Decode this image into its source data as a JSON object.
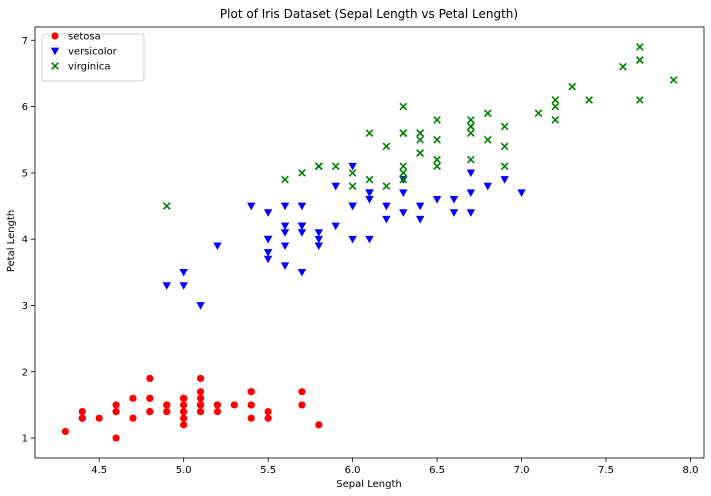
{
  "chart_data": {
    "type": "scatter",
    "title": "Plot of Iris Dataset (Sepal Length vs Petal Length)",
    "xlabel": "Sepal Length",
    "ylabel": "Petal Length",
    "xlim": [
      4.12,
      8.08
    ],
    "ylim": [
      0.7,
      7.2
    ],
    "xticks": [
      "4.5",
      "5.0",
      "5.5",
      "6.0",
      "6.5",
      "7.0",
      "7.5",
      "8.0"
    ],
    "yticks": [
      "1",
      "2",
      "3",
      "4",
      "5",
      "6",
      "7"
    ],
    "grid": false,
    "legend_position": "top-left",
    "series": [
      {
        "name": "setosa",
        "marker": "circle",
        "color": "#ff0000",
        "points": [
          [
            5.1,
            1.4
          ],
          [
            4.9,
            1.4
          ],
          [
            4.7,
            1.3
          ],
          [
            4.6,
            1.5
          ],
          [
            5.0,
            1.4
          ],
          [
            5.4,
            1.7
          ],
          [
            4.6,
            1.4
          ],
          [
            5.0,
            1.5
          ],
          [
            4.4,
            1.4
          ],
          [
            4.9,
            1.5
          ],
          [
            5.4,
            1.5
          ],
          [
            4.8,
            1.6
          ],
          [
            4.8,
            1.4
          ],
          [
            4.3,
            1.1
          ],
          [
            5.8,
            1.2
          ],
          [
            5.7,
            1.5
          ],
          [
            5.4,
            1.3
          ],
          [
            5.1,
            1.4
          ],
          [
            5.7,
            1.7
          ],
          [
            5.1,
            1.5
          ],
          [
            5.4,
            1.7
          ],
          [
            5.1,
            1.5
          ],
          [
            4.6,
            1.0
          ],
          [
            5.1,
            1.7
          ],
          [
            4.8,
            1.9
          ],
          [
            5.0,
            1.6
          ],
          [
            5.0,
            1.6
          ],
          [
            5.2,
            1.5
          ],
          [
            5.2,
            1.4
          ],
          [
            4.7,
            1.6
          ],
          [
            4.8,
            1.6
          ],
          [
            5.4,
            1.5
          ],
          [
            5.2,
            1.5
          ],
          [
            5.5,
            1.4
          ],
          [
            4.9,
            1.5
          ],
          [
            5.0,
            1.2
          ],
          [
            5.5,
            1.3
          ],
          [
            4.9,
            1.4
          ],
          [
            4.4,
            1.3
          ],
          [
            5.1,
            1.5
          ],
          [
            5.0,
            1.3
          ],
          [
            4.5,
            1.3
          ],
          [
            4.4,
            1.3
          ],
          [
            5.0,
            1.6
          ],
          [
            5.1,
            1.9
          ],
          [
            4.8,
            1.4
          ],
          [
            5.1,
            1.6
          ],
          [
            4.6,
            1.4
          ],
          [
            5.3,
            1.5
          ],
          [
            5.0,
            1.4
          ]
        ]
      },
      {
        "name": "versicolor",
        "marker": "triangle-down",
        "color": "#0000ff",
        "points": [
          [
            7.0,
            4.7
          ],
          [
            6.4,
            4.5
          ],
          [
            6.9,
            4.9
          ],
          [
            5.5,
            4.0
          ],
          [
            6.5,
            4.6
          ],
          [
            5.7,
            4.5
          ],
          [
            6.3,
            4.7
          ],
          [
            4.9,
            3.3
          ],
          [
            6.6,
            4.6
          ],
          [
            5.2,
            3.9
          ],
          [
            5.0,
            3.5
          ],
          [
            5.9,
            4.2
          ],
          [
            6.0,
            4.0
          ],
          [
            6.1,
            4.7
          ],
          [
            5.6,
            3.6
          ],
          [
            6.7,
            4.4
          ],
          [
            5.6,
            4.5
          ],
          [
            5.8,
            4.1
          ],
          [
            6.2,
            4.5
          ],
          [
            5.6,
            3.9
          ],
          [
            5.9,
            4.8
          ],
          [
            6.1,
            4.0
          ],
          [
            6.3,
            4.9
          ],
          [
            6.1,
            4.7
          ],
          [
            6.4,
            4.3
          ],
          [
            6.6,
            4.4
          ],
          [
            6.8,
            4.8
          ],
          [
            6.7,
            5.0
          ],
          [
            6.0,
            4.5
          ],
          [
            5.7,
            3.5
          ],
          [
            5.5,
            3.8
          ],
          [
            5.5,
            3.7
          ],
          [
            5.8,
            3.9
          ],
          [
            6.0,
            5.1
          ],
          [
            5.4,
            4.5
          ],
          [
            6.0,
            4.5
          ],
          [
            6.7,
            4.7
          ],
          [
            6.3,
            4.4
          ],
          [
            5.6,
            4.1
          ],
          [
            5.5,
            4.0
          ],
          [
            5.5,
            4.4
          ],
          [
            6.1,
            4.6
          ],
          [
            5.8,
            4.0
          ],
          [
            5.0,
            3.3
          ],
          [
            5.6,
            4.2
          ],
          [
            5.7,
            4.2
          ],
          [
            5.7,
            4.2
          ],
          [
            6.2,
            4.3
          ],
          [
            5.1,
            3.0
          ],
          [
            5.7,
            4.1
          ]
        ]
      },
      {
        "name": "virginica",
        "marker": "x",
        "color": "#008000",
        "points": [
          [
            6.3,
            6.0
          ],
          [
            5.8,
            5.1
          ],
          [
            7.1,
            5.9
          ],
          [
            6.3,
            5.6
          ],
          [
            6.5,
            5.8
          ],
          [
            7.6,
            6.6
          ],
          [
            4.9,
            4.5
          ],
          [
            7.3,
            6.3
          ],
          [
            6.7,
            5.8
          ],
          [
            7.2,
            6.1
          ],
          [
            6.5,
            5.1
          ],
          [
            6.4,
            5.3
          ],
          [
            6.8,
            5.5
          ],
          [
            5.7,
            5.0
          ],
          [
            5.8,
            5.1
          ],
          [
            6.4,
            5.3
          ],
          [
            6.5,
            5.5
          ],
          [
            7.7,
            6.7
          ],
          [
            7.7,
            6.9
          ],
          [
            6.0,
            5.0
          ],
          [
            6.9,
            5.7
          ],
          [
            5.6,
            4.9
          ],
          [
            7.7,
            6.7
          ],
          [
            6.3,
            4.9
          ],
          [
            6.7,
            5.7
          ],
          [
            7.2,
            6.0
          ],
          [
            6.2,
            4.8
          ],
          [
            6.1,
            4.9
          ],
          [
            6.4,
            5.6
          ],
          [
            7.2,
            5.8
          ],
          [
            7.4,
            6.1
          ],
          [
            7.9,
            6.4
          ],
          [
            6.4,
            5.6
          ],
          [
            6.3,
            5.1
          ],
          [
            6.1,
            5.6
          ],
          [
            7.7,
            6.1
          ],
          [
            6.3,
            5.6
          ],
          [
            6.4,
            5.5
          ],
          [
            6.0,
            4.8
          ],
          [
            6.9,
            5.4
          ],
          [
            6.7,
            5.6
          ],
          [
            6.9,
            5.1
          ],
          [
            5.8,
            5.1
          ],
          [
            6.8,
            5.9
          ],
          [
            6.7,
            5.7
          ],
          [
            6.7,
            5.2
          ],
          [
            6.3,
            5.0
          ],
          [
            6.5,
            5.2
          ],
          [
            6.2,
            5.4
          ],
          [
            5.9,
            5.1
          ]
        ]
      }
    ]
  }
}
